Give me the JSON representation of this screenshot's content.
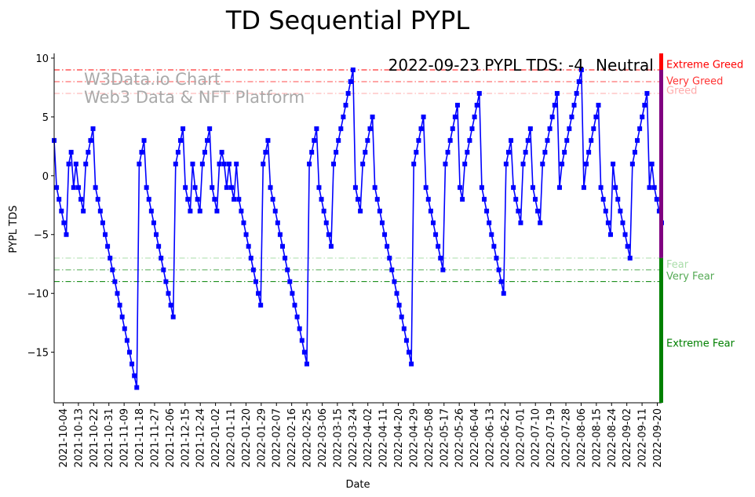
{
  "chart_data": {
    "type": "line",
    "title": "TD Sequential PYPL",
    "xlabel": "Date",
    "ylabel": "PYPL TDS",
    "ylim": [
      -19.3,
      10.4
    ],
    "yticks": [
      10,
      5,
      0,
      -5,
      -10,
      -15
    ],
    "ytick_labels": [
      "10",
      "5",
      "0",
      "−5",
      "−10",
      "−15"
    ],
    "xticks": [
      "2021-10-04",
      "2021-10-13",
      "2021-10-22",
      "2021-10-31",
      "2021-11-09",
      "2021-11-18",
      "2021-11-27",
      "2021-12-06",
      "2021-12-15",
      "2021-12-24",
      "2022-01-02",
      "2022-01-11",
      "2022-01-20",
      "2022-01-29",
      "2022-02-07",
      "2022-02-16",
      "2022-02-25",
      "2022-03-06",
      "2022-03-15",
      "2022-03-24",
      "2022-04-02",
      "2022-04-11",
      "2022-04-20",
      "2022-04-29",
      "2022-05-08",
      "2022-05-17",
      "2022-05-26",
      "2022-06-04",
      "2022-06-13",
      "2022-06-22",
      "2022-07-01",
      "2022-07-10",
      "2022-07-19",
      "2022-07-28",
      "2022-08-06",
      "2022-08-15",
      "2022-08-24",
      "2022-09-02",
      "2022-09-11",
      "2022-09-20"
    ],
    "series": [
      {
        "name": "PYPL TDS",
        "color": "#0000ff",
        "values": [
          3,
          -1,
          -2,
          -3,
          -4,
          -5,
          1,
          2,
          -1,
          1,
          -1,
          -2,
          -3,
          1,
          2,
          3,
          4,
          -1,
          -2,
          -3,
          -4,
          -5,
          -6,
          -7,
          -8,
          -9,
          -10,
          -11,
          -12,
          -13,
          -14,
          -15,
          -16,
          -17,
          -18,
          1,
          2,
          3,
          -1,
          -2,
          -3,
          -4,
          -5,
          -6,
          -7,
          -8,
          -9,
          -10,
          -11,
          -12,
          1,
          2,
          3,
          4,
          -1,
          -2,
          -3,
          1,
          -1,
          -2,
          -3,
          1,
          2,
          3,
          4,
          -1,
          -2,
          -3,
          1,
          2,
          1,
          -1,
          1,
          -1,
          -2,
          1,
          -2,
          -3,
          -4,
          -5,
          -6,
          -7,
          -8,
          -9,
          -10,
          -11,
          1,
          2,
          3,
          -1,
          -2,
          -3,
          -4,
          -5,
          -6,
          -7,
          -8,
          -9,
          -10,
          -11,
          -12,
          -13,
          -14,
          -15,
          -16,
          1,
          2,
          3,
          4,
          -1,
          -2,
          -3,
          -4,
          -5,
          -6,
          1,
          2,
          3,
          4,
          5,
          6,
          7,
          8,
          9,
          -1,
          -2,
          -3,
          1,
          2,
          3,
          4,
          5,
          -1,
          -2,
          -3,
          -4,
          -5,
          -6,
          -7,
          -8,
          -9,
          -10,
          -11,
          -12,
          -13,
          -14,
          -15,
          -16,
          1,
          2,
          3,
          4,
          5,
          -1,
          -2,
          -3,
          -4,
          -5,
          -6,
          -7,
          -8,
          1,
          2,
          3,
          4,
          5,
          6,
          -1,
          -2,
          1,
          2,
          3,
          4,
          5,
          6,
          7,
          -1,
          -2,
          -3,
          -4,
          -5,
          -6,
          -7,
          -8,
          -9,
          -10,
          1,
          2,
          3,
          -1,
          -2,
          -3,
          -4,
          1,
          2,
          3,
          4,
          -1,
          -2,
          -3,
          -4,
          1,
          2,
          3,
          4,
          5,
          6,
          7,
          -1,
          1,
          2,
          3,
          4,
          5,
          6,
          7,
          8,
          9,
          -1,
          1,
          2,
          3,
          4,
          5,
          6,
          -1,
          -2,
          -3,
          -4,
          -5,
          1,
          -1,
          -2,
          -3,
          -4,
          -5,
          -6,
          -7,
          1,
          2,
          3,
          4,
          5,
          6,
          7,
          -1,
          1,
          -1,
          -2,
          -3,
          -4
        ]
      }
    ],
    "hlines": [
      {
        "value": 9,
        "color": "#ff0000"
      },
      {
        "value": 8,
        "color": "#ff4d4d"
      },
      {
        "value": 7,
        "color": "#ffaaaa"
      },
      {
        "value": -7,
        "color": "#aaddaa"
      },
      {
        "value": -8,
        "color": "#55aa55"
      },
      {
        "value": -9,
        "color": "#008000"
      }
    ],
    "zones": [
      {
        "label": "Extreme Greed",
        "value": 9.5,
        "color": "#ff0000"
      },
      {
        "label": "Very Greed",
        "value": 8.1,
        "color": "#ff3333"
      },
      {
        "label": "Greed",
        "value": 7.3,
        "color": "#ffaaaa"
      },
      {
        "label": "Fear",
        "value": -7.5,
        "color": "#aaddaa"
      },
      {
        "label": "Very Fear",
        "value": -8.5,
        "color": "#55aa55"
      },
      {
        "label": "Extreme Fear",
        "value": -14.2,
        "color": "#008000"
      }
    ],
    "sentiment_bar": [
      {
        "from": 10.4,
        "to": 9,
        "color": "#ff0000"
      },
      {
        "from": 9,
        "to": -7,
        "color": "#800080"
      },
      {
        "from": -7,
        "to": -19.3,
        "color": "#008000"
      }
    ],
    "annotation": {
      "text": "2022-09-23 PYPL TDS: -4",
      "sentiment": "Neutral",
      "sentiment_color": "#800080"
    },
    "watermark": [
      "W3Data.io Chart",
      "Web3 Data & NFT Platform"
    ]
  }
}
